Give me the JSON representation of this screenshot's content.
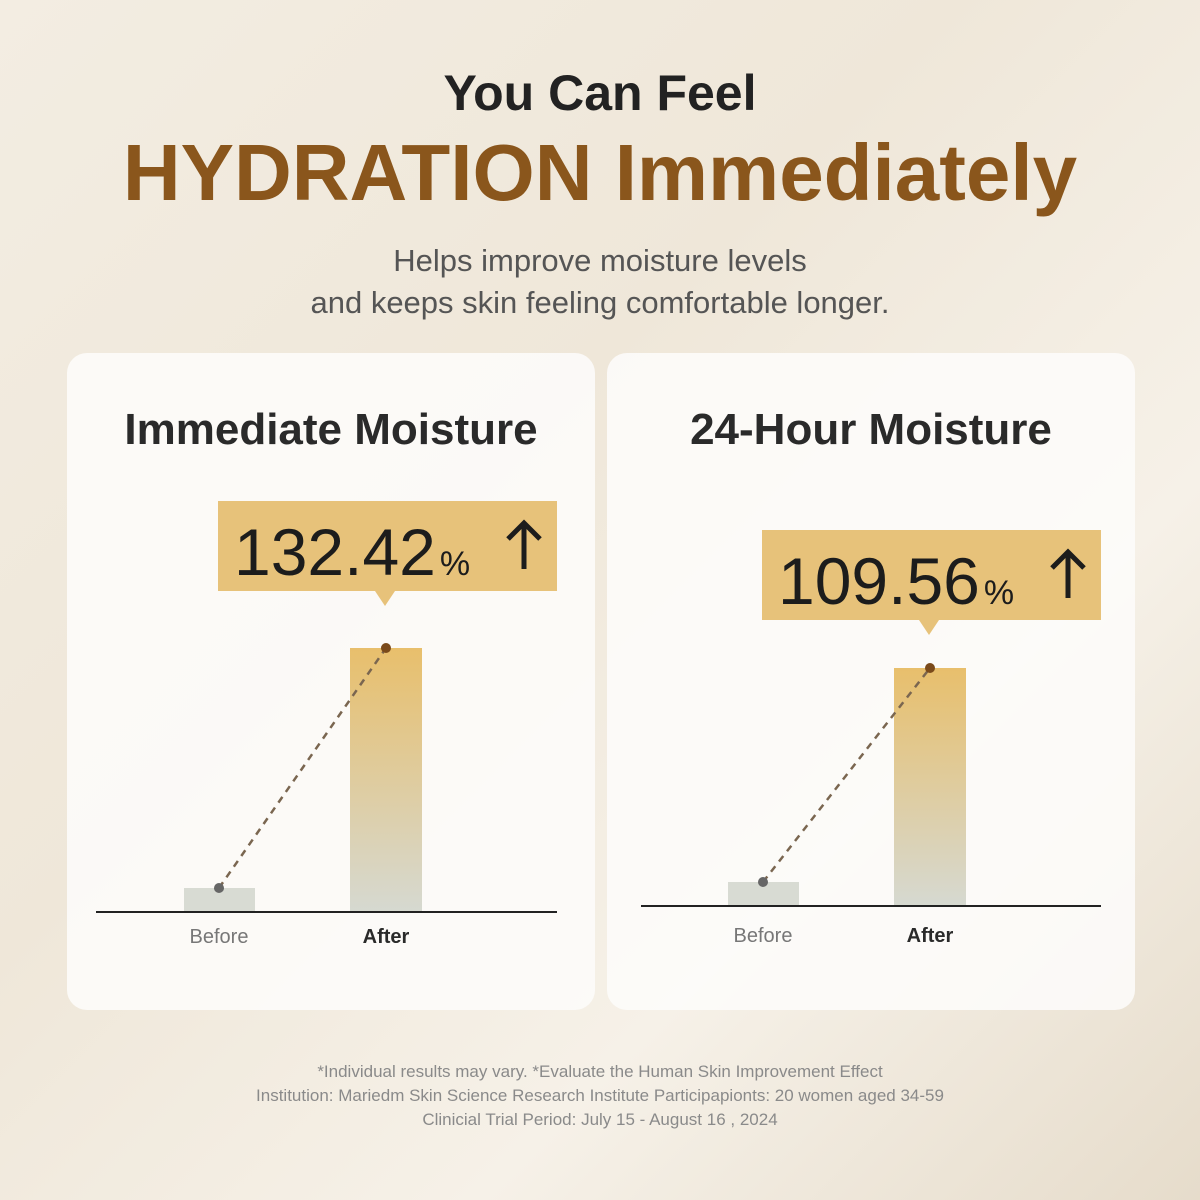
{
  "header": {
    "eyebrow": "You Can Feel",
    "title": "HYDRATION Immediately",
    "subtitle": [
      "Helps improve moisture levels",
      "and keeps skin feeling comfortable longer."
    ]
  },
  "panels": [
    {
      "title": "Immediate Moisture",
      "value": "132.42",
      "unit": "%",
      "labels": [
        "Before",
        "After"
      ]
    },
    {
      "title": "24-Hour Moisture",
      "value": "109.56",
      "unit": "%",
      "labels": [
        "Before",
        "After"
      ]
    }
  ],
  "footnote": [
    "*Individual results may vary. *Evaluate the Human Skin Improvement Effect",
    "Institution: Mariedm Skin Science Research Institute Participapionts: 20 women aged 34-59",
    "Clinicial Trial Period: July 15 - August 16 , 2024"
  ]
}
